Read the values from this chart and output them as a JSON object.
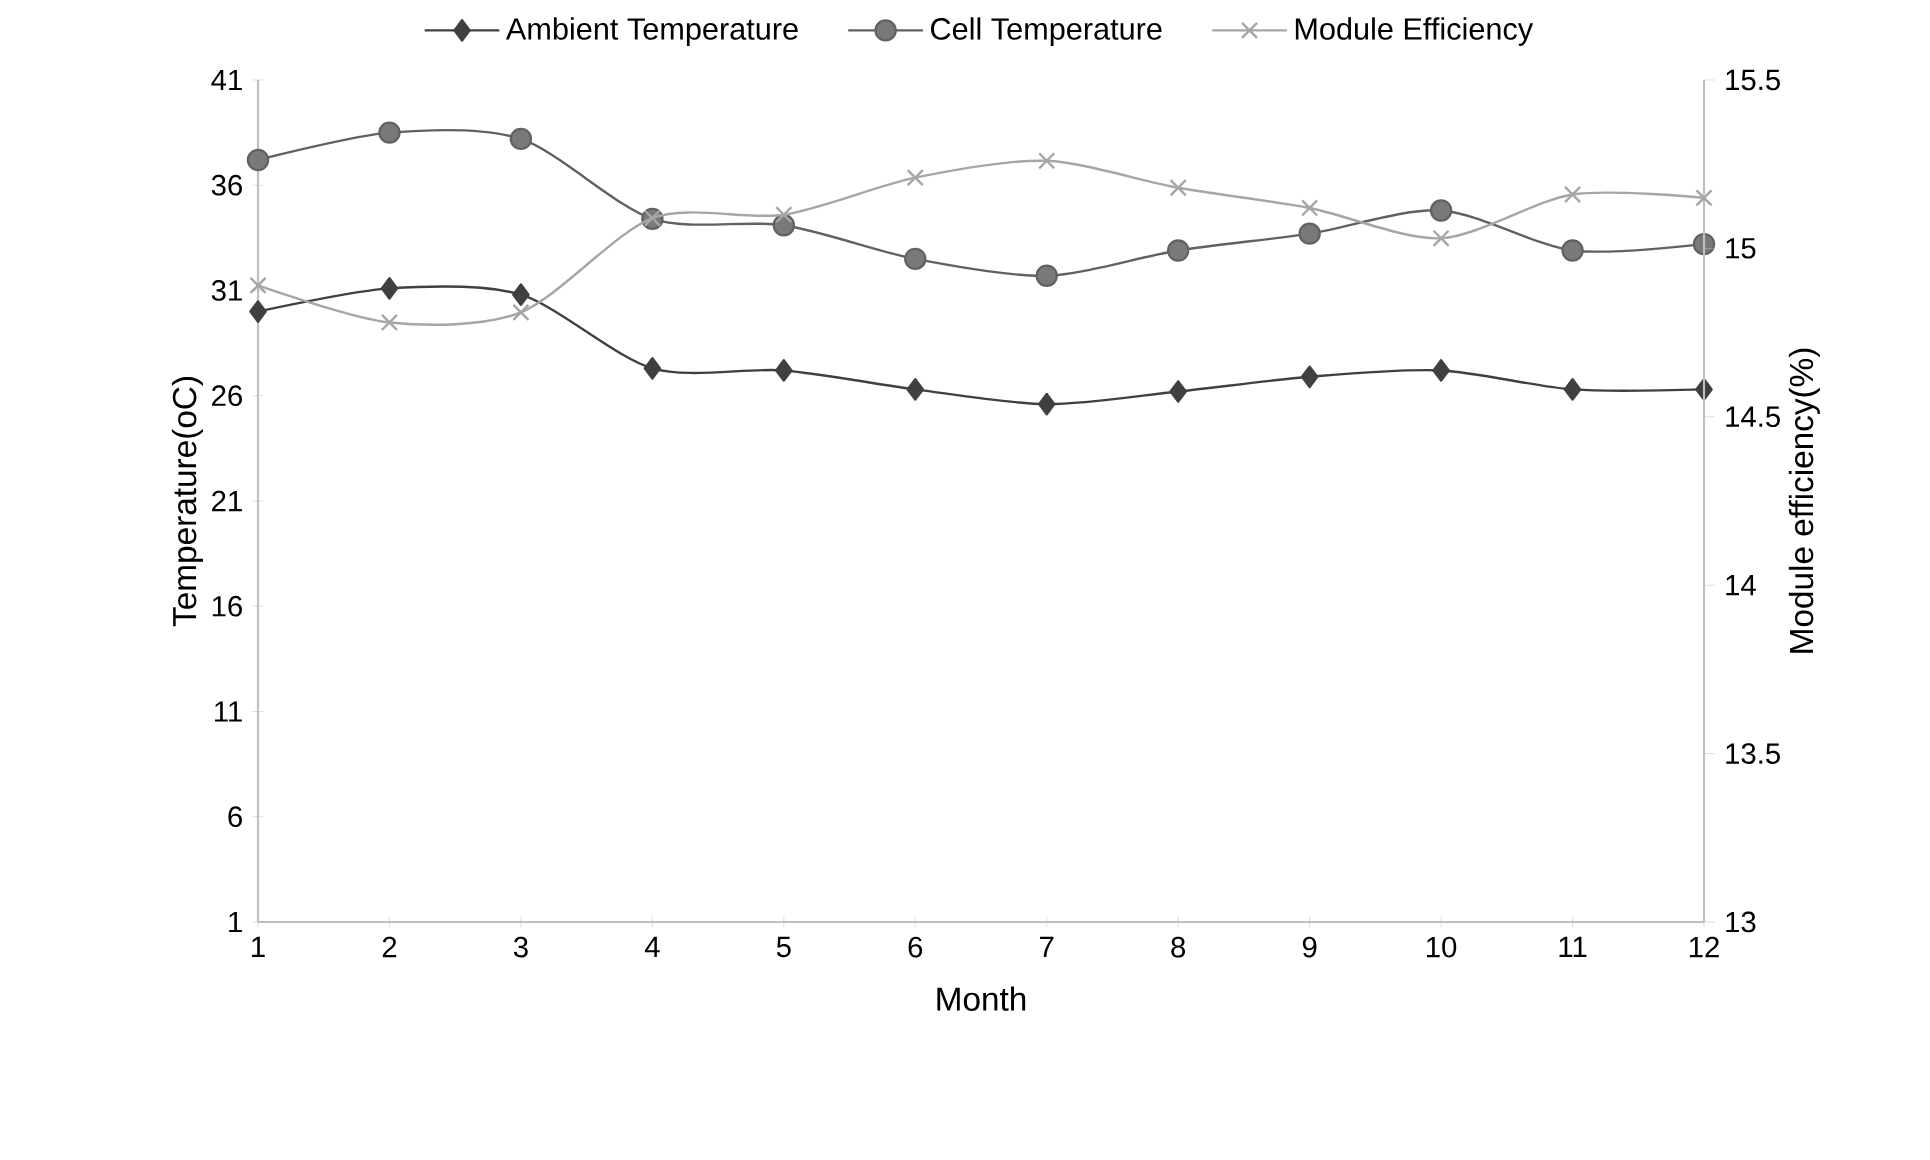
{
  "chart_data": {
    "type": "line",
    "xlabel": "Month",
    "ylabel": "Temperature(oC)",
    "y2label": "Module efficiency(%)",
    "x": [
      1,
      2,
      3,
      4,
      5,
      6,
      7,
      8,
      9,
      10,
      11,
      12
    ],
    "xlim": [
      1,
      12
    ],
    "xticks": [
      1,
      2,
      3,
      4,
      5,
      6,
      7,
      8,
      9,
      10,
      11,
      12
    ],
    "ylim": [
      1,
      41
    ],
    "yticks": [
      1,
      6,
      11,
      16,
      21,
      26,
      31,
      36,
      41
    ],
    "y2lim": [
      13,
      15.5
    ],
    "y2ticks": [
      13,
      13.5,
      14,
      14.5,
      15,
      15.5
    ],
    "legend": "top",
    "line_style": "solid",
    "series": [
      {
        "name": "Ambient Temperature",
        "color": "#404040",
        "marker": "diamond",
        "values": [
          30.0,
          31.1,
          30.8,
          27.3,
          27.2,
          26.3,
          25.6,
          26.2,
          26.9,
          27.2,
          26.3,
          26.3
        ]
      },
      {
        "name": "Cell Temperature",
        "color": "#616161",
        "marker": "circle",
        "values": [
          37.2,
          38.5,
          38.2,
          34.4,
          34.1,
          32.5,
          31.7,
          32.9,
          33.7,
          34.8,
          32.9,
          33.2
        ]
      },
      {
        "name": "Module Efficiency",
        "color": "#a6a6a6",
        "marker": "cross",
        "axis": "y2",
        "values": [
          14.89,
          14.78,
          14.81,
          15.09,
          15.1,
          15.21,
          15.26,
          15.18,
          15.12,
          15.03,
          15.16,
          15.15
        ]
      }
    ]
  }
}
